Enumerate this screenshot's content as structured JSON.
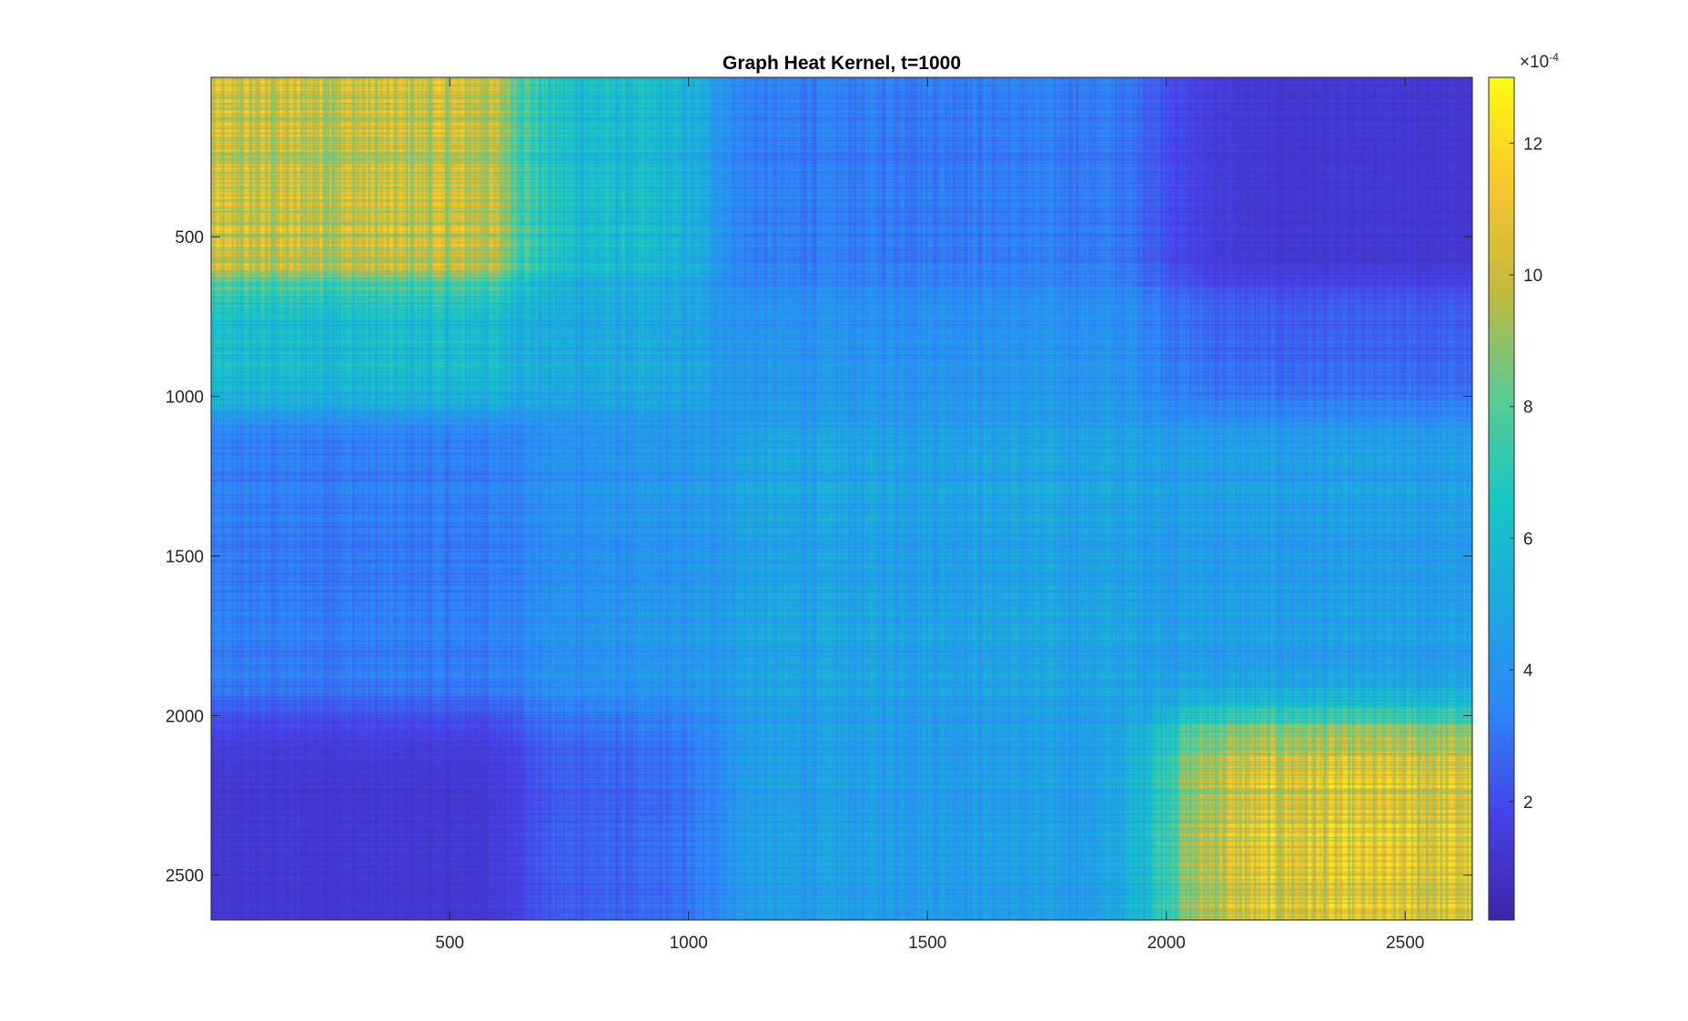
{
  "chart_data": {
    "type": "heatmap",
    "title": "Graph Heat Kernel, t=1000",
    "xlabel": "",
    "ylabel": "",
    "n_nodes": 2640,
    "xlim": [
      1,
      2640
    ],
    "ylim": [
      1,
      2640
    ],
    "y_reversed": true,
    "x_ticks": [
      500,
      1000,
      1500,
      2000,
      2500
    ],
    "y_ticks": [
      500,
      1000,
      1500,
      2000,
      2500
    ],
    "colormap": "parula",
    "colormap_stops": [
      "#3e26a8",
      "#4743e8",
      "#2e87f7",
      "#1ca9df",
      "#1ac7c2",
      "#5fcb91",
      "#c4b93c",
      "#f9c72d",
      "#f9fb14"
    ],
    "colorbar": {
      "range": [
        0.2,
        13.0
      ],
      "ticks": [
        2,
        4,
        6,
        8,
        10,
        12
      ],
      "tick_labels": [
        "2",
        "4",
        "6",
        "8",
        "10",
        "12"
      ],
      "exponent_multiplier": "×10",
      "exponent_power": "-4",
      "unit_scale": 0.0001
    },
    "block_summary": {
      "description_groups": [
        "nodes 1-650",
        "nodes 650-1050",
        "nodes 1050-2000",
        "nodes 2000-2640"
      ],
      "group_bounds": [
        1,
        650,
        1050,
        2000,
        2640
      ],
      "mean_values_e4": [
        [
          10.0,
          6.0,
          3.2,
          1.2
        ],
        [
          6.0,
          5.0,
          4.0,
          2.5
        ],
        [
          3.2,
          4.0,
          4.8,
          4.5
        ],
        [
          1.2,
          2.5,
          4.5,
          10.5
        ]
      ]
    },
    "grid": false,
    "legend": "none"
  }
}
